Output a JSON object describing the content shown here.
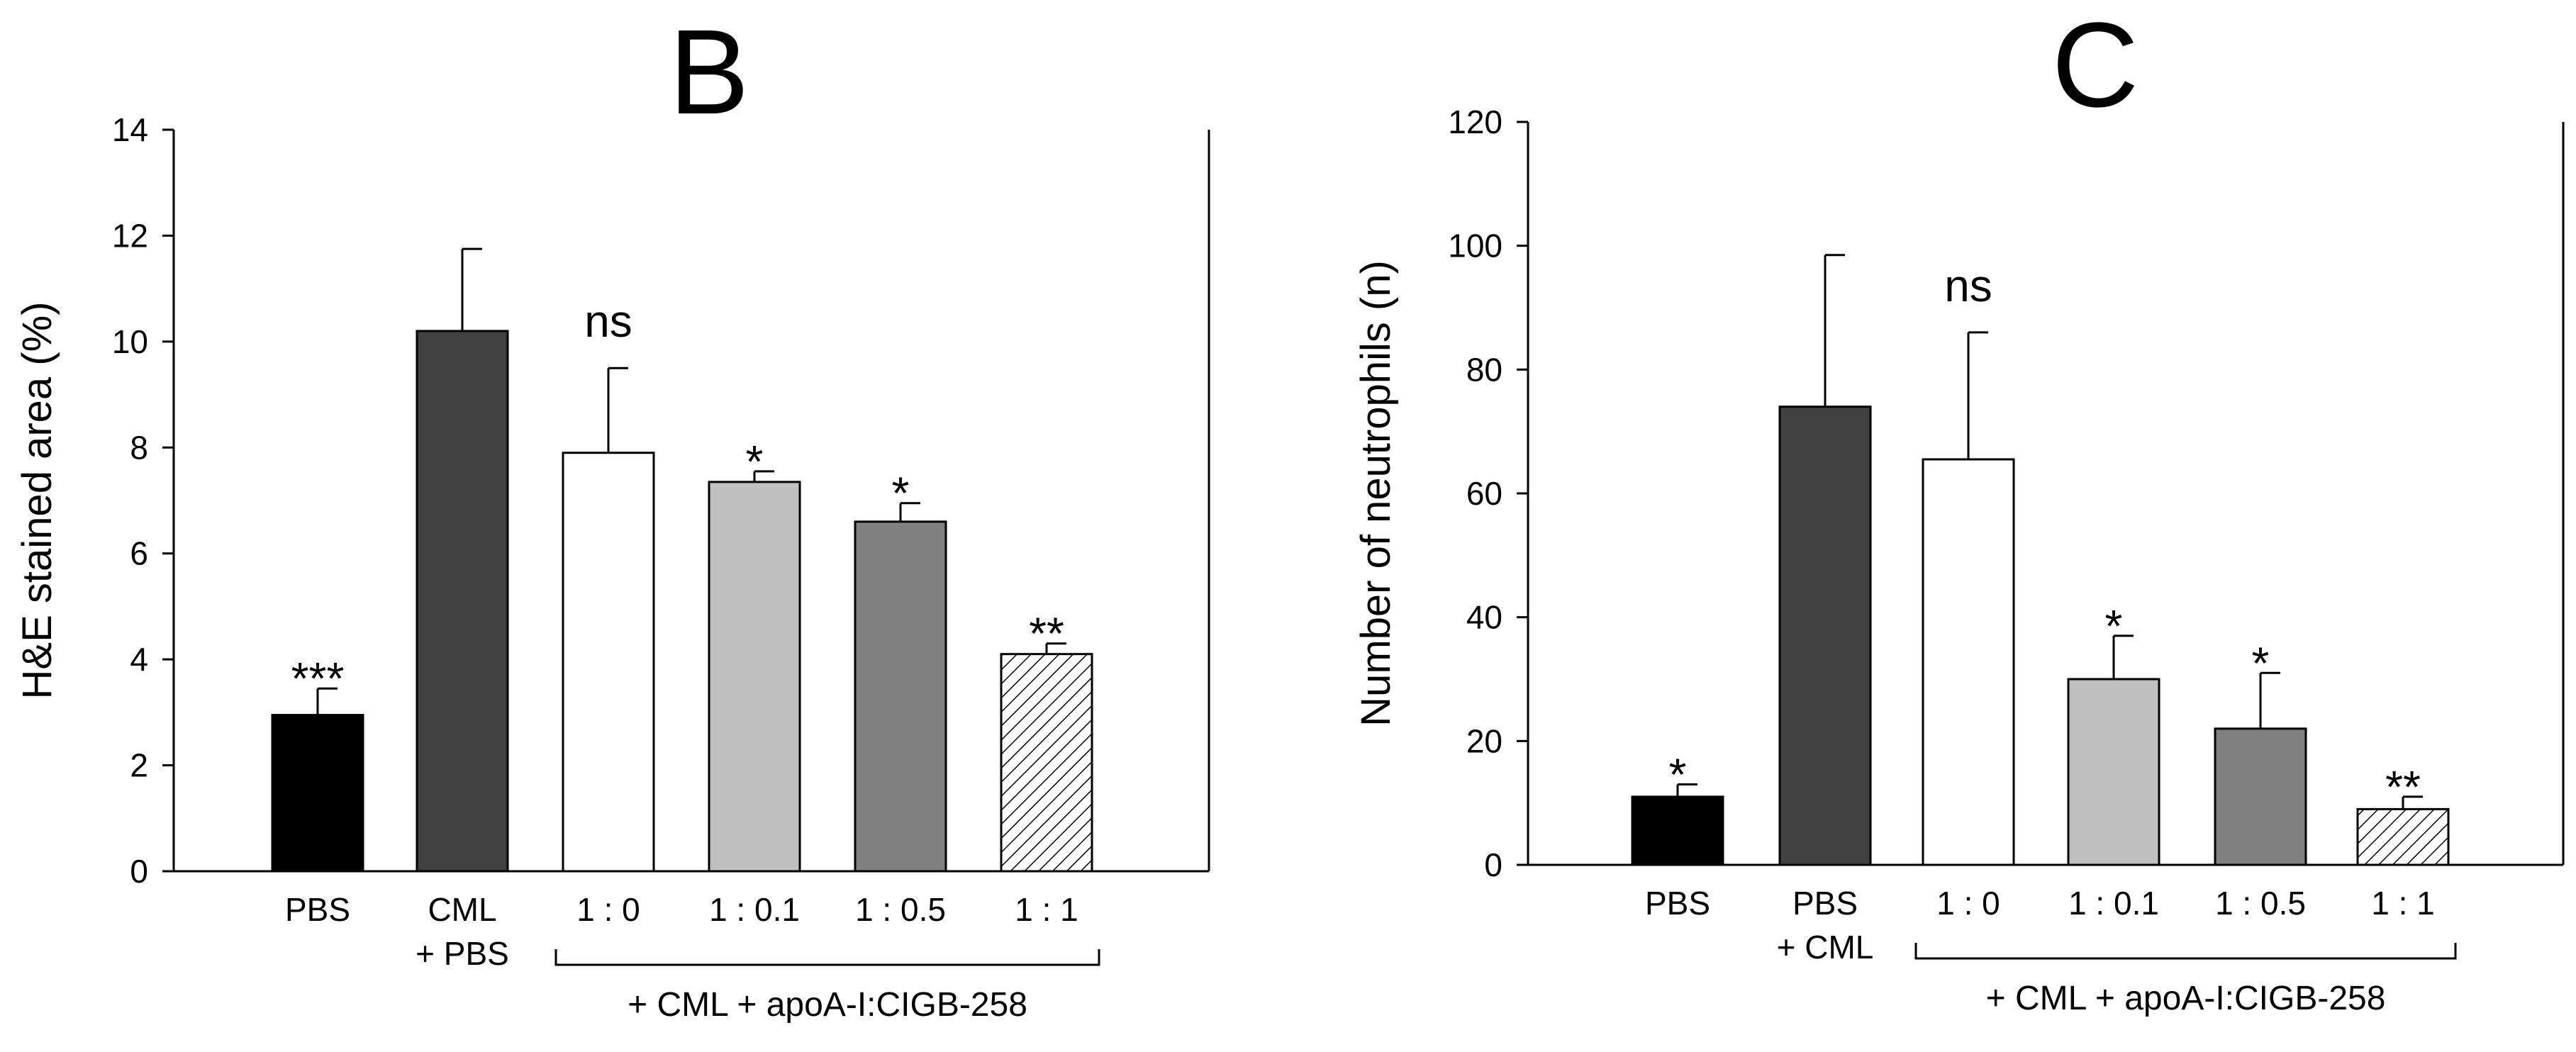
{
  "chart_data": [
    {
      "type": "bar",
      "panel_label": "B",
      "ylabel": "H&E stained area (%)",
      "ylim": [
        0,
        14
      ],
      "yticks": [
        0,
        2,
        4,
        6,
        8,
        10,
        12,
        14
      ],
      "categories": [
        {
          "lines": [
            "PBS"
          ]
        },
        {
          "lines": [
            "CML",
            "+ PBS"
          ]
        },
        {
          "lines": [
            "1 : 0"
          ]
        },
        {
          "lines": [
            "1 : 0.1"
          ]
        },
        {
          "lines": [
            "1 : 0.5"
          ]
        },
        {
          "lines": [
            "1 : 1"
          ]
        }
      ],
      "values": [
        2.95,
        10.2,
        7.9,
        7.35,
        6.6,
        4.1
      ],
      "errors": [
        0.5,
        1.55,
        1.6,
        0.2,
        0.35,
        0.2
      ],
      "significance": [
        "***",
        "",
        "ns",
        "*",
        "*",
        "**"
      ],
      "fills": [
        "#000000",
        "#404040",
        "#ffffff",
        "#c0c0c0",
        "#808080",
        "hatch"
      ],
      "group_label": "+ CML + apoA-I:CIGB-258",
      "group_range": [
        2,
        5
      ]
    },
    {
      "type": "bar",
      "panel_label": "C",
      "ylabel": "Number of neutrophils (n)",
      "ylim": [
        0,
        120
      ],
      "yticks": [
        0,
        20,
        40,
        60,
        80,
        100,
        120
      ],
      "categories": [
        {
          "lines": [
            "PBS"
          ]
        },
        {
          "lines": [
            "PBS",
            "+ CML"
          ]
        },
        {
          "lines": [
            "1 : 0"
          ]
        },
        {
          "lines": [
            "1 : 0.1"
          ]
        },
        {
          "lines": [
            "1 : 0.5"
          ]
        },
        {
          "lines": [
            "1 : 1"
          ]
        }
      ],
      "values": [
        11,
        74,
        65.5,
        30,
        22,
        9
      ],
      "errors": [
        2,
        24.5,
        20.5,
        7,
        9,
        2
      ],
      "significance": [
        "*",
        "",
        "ns",
        "*",
        "*",
        "**"
      ],
      "fills": [
        "#000000",
        "#404040",
        "#ffffff",
        "#c0c0c0",
        "#808080",
        "hatch"
      ],
      "group_label": "+ CML + apoA-I:CIGB-258",
      "group_range": [
        2,
        5
      ]
    }
  ]
}
